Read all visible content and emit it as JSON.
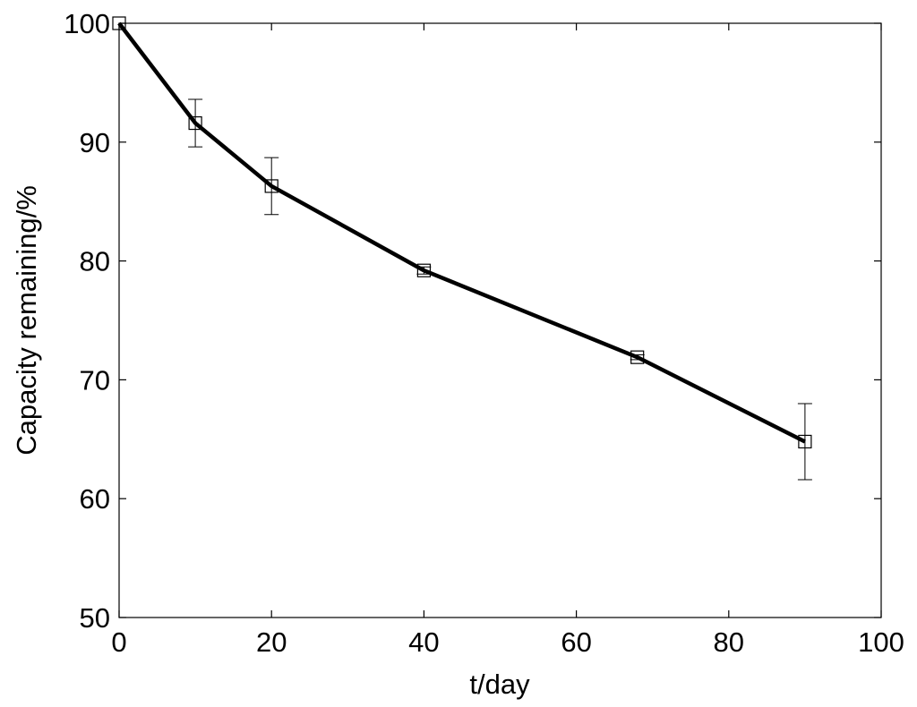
{
  "chart_data": {
    "type": "line",
    "title": "",
    "xlabel": "t/day",
    "ylabel": "Capacity remaining/%",
    "xlim": [
      0,
      100
    ],
    "ylim": [
      50,
      100
    ],
    "xticks": [
      0,
      20,
      40,
      60,
      80,
      100
    ],
    "yticks": [
      50,
      60,
      70,
      80,
      90,
      100
    ],
    "xtick_labels": [
      "0",
      "20",
      "40",
      "60",
      "80",
      "100"
    ],
    "ytick_labels": [
      "50",
      "60",
      "70",
      "80",
      "90",
      "100"
    ],
    "grid": false,
    "legend": "none",
    "marker": "square",
    "series": [
      {
        "x": [
          0,
          10,
          20,
          40,
          68,
          90
        ],
        "y": [
          100,
          91.6,
          86.3,
          79.2,
          71.9,
          64.8
        ],
        "error": [
          0,
          2.0,
          2.4,
          0.3,
          0.2,
          3.2
        ],
        "color": "#000000"
      }
    ]
  }
}
